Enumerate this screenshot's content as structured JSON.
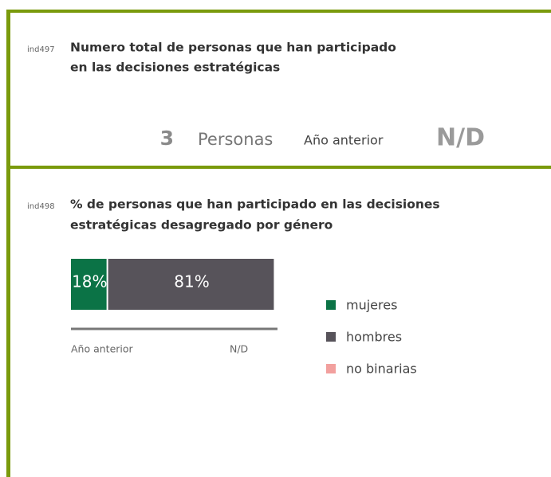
{
  "sections": [
    {
      "code": "ind497",
      "title": [
        "Numero total de personas que han participado",
        "en las decisiones estratégicas"
      ],
      "value": 3,
      "unit": "Personas",
      "previous_label": "Año anterior",
      "previous_value": "N/D"
    },
    {
      "code": "ind498",
      "title": [
        "% de personas que han participado en las decisiones",
        "estratégicas desagregado por género"
      ],
      "chart": {
        "type": "bar",
        "series": [
          {
            "name": "mujeres",
            "color": "#0b7346",
            "values": [
              18
            ],
            "value_labels": [
              "18%"
            ]
          },
          {
            "name": "hombres",
            "color": "#57535a",
            "values": [
              81
            ],
            "value_labels": [
              "81%"
            ]
          },
          {
            "name": "no binarias",
            "color": "#f2a09e",
            "values": [
              null
            ]
          }
        ],
        "previous_label": "Año anterior",
        "previous_value": "N/D"
      }
    }
  ]
}
